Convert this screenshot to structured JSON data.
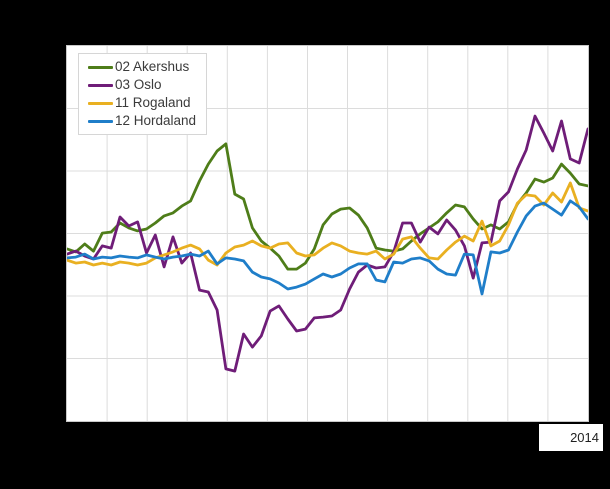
{
  "chart_data": {
    "type": "line",
    "title": "",
    "xlabel": "",
    "ylabel": "",
    "x_axis": {
      "last_tick_label": "2014"
    },
    "y_units": "percent of plot height (no y-axis value labels are visible in the image)",
    "ylim": [
      0,
      100
    ],
    "grid": {
      "on": true,
      "vertical_divisions": 13,
      "horizontal_divisions": 6
    },
    "legend_position": "top-left",
    "series": [
      {
        "name": "02 Akershus",
        "color": "#4e7d19",
        "values": [
          45.9,
          45.1,
          47.2,
          45.3,
          50.1,
          50.4,
          52.8,
          51.5,
          50.7,
          51.2,
          52.8,
          54.7,
          55.5,
          57.3,
          58.7,
          64.0,
          68.5,
          72.0,
          73.9,
          60.5,
          59.2,
          51.5,
          48.0,
          46.1,
          44.0,
          40.5,
          40.5,
          42.1,
          45.9,
          52.3,
          55.2,
          56.5,
          56.8,
          54.9,
          51.5,
          46.1,
          45.6,
          45.3,
          45.9,
          48.0,
          49.9,
          51.5,
          53.1,
          55.5,
          57.6,
          57.1,
          53.9,
          51.2,
          52.3,
          51.2,
          53.1,
          57.9,
          60.8,
          64.5,
          63.7,
          64.8,
          68.5,
          66.1,
          63.2,
          62.7
        ]
      },
      {
        "name": "03 Oslo",
        "color": "#6f1d78",
        "values": [
          44.5,
          45.3,
          44.0,
          43.2,
          46.7,
          46.1,
          54.4,
          52.0,
          53.1,
          44.8,
          49.6,
          41.1,
          49.1,
          42.1,
          44.8,
          34.9,
          34.4,
          29.6,
          13.9,
          13.3,
          23.2,
          19.7,
          22.7,
          29.3,
          30.7,
          27.2,
          24.0,
          24.5,
          27.5,
          27.7,
          28.0,
          29.6,
          35.2,
          39.7,
          41.6,
          40.8,
          41.1,
          45.1,
          52.8,
          52.8,
          47.7,
          51.7,
          49.9,
          53.6,
          50.9,
          46.7,
          38.1,
          47.5,
          47.7,
          58.7,
          61.1,
          67.2,
          72.3,
          81.3,
          76.8,
          72.0,
          80.0,
          69.9,
          68.8,
          77.9
        ]
      },
      {
        "name": "11 Rogaland",
        "color": "#e9b021",
        "values": [
          42.9,
          42.1,
          42.4,
          41.6,
          42.1,
          41.6,
          42.4,
          42.1,
          41.6,
          42.1,
          43.5,
          44.3,
          45.1,
          46.1,
          46.9,
          45.9,
          42.9,
          41.6,
          44.8,
          46.4,
          46.9,
          48.0,
          46.7,
          46.1,
          47.2,
          47.5,
          44.8,
          44.0,
          44.3,
          46.1,
          47.5,
          46.7,
          45.3,
          44.8,
          44.5,
          45.3,
          43.2,
          44.5,
          48.5,
          49.1,
          46.1,
          43.5,
          43.2,
          45.6,
          47.7,
          49.3,
          48.0,
          53.3,
          46.7,
          48.0,
          52.3,
          58.1,
          60.3,
          60.0,
          57.6,
          60.8,
          58.4,
          63.5,
          56.8,
          56.0
        ]
      },
      {
        "name": "12 Hordaland",
        "color": "#1f7ec9",
        "values": [
          43.5,
          43.7,
          44.5,
          43.2,
          43.7,
          43.5,
          44.0,
          43.7,
          43.5,
          44.3,
          43.7,
          43.2,
          43.7,
          44.0,
          44.5,
          44.0,
          45.3,
          41.9,
          43.5,
          43.2,
          42.7,
          39.7,
          38.4,
          37.9,
          36.8,
          35.2,
          35.7,
          36.5,
          37.9,
          39.2,
          38.4,
          39.2,
          40.8,
          41.9,
          41.9,
          37.6,
          37.1,
          42.4,
          42.1,
          43.2,
          43.5,
          42.7,
          40.5,
          39.2,
          38.9,
          44.5,
          44.3,
          33.9,
          45.1,
          44.8,
          45.6,
          50.4,
          54.7,
          57.3,
          58.1,
          56.5,
          54.9,
          58.7,
          57.1,
          53.9
        ]
      }
    ]
  },
  "colors": {
    "page_background": "#000000",
    "plot_background": "#ffffff",
    "grid_line": "#dcdcdc",
    "plot_border": "#c9c9c9",
    "legend_text": "#3b3b3b",
    "tick_label_text": "#1f1f1f"
  }
}
